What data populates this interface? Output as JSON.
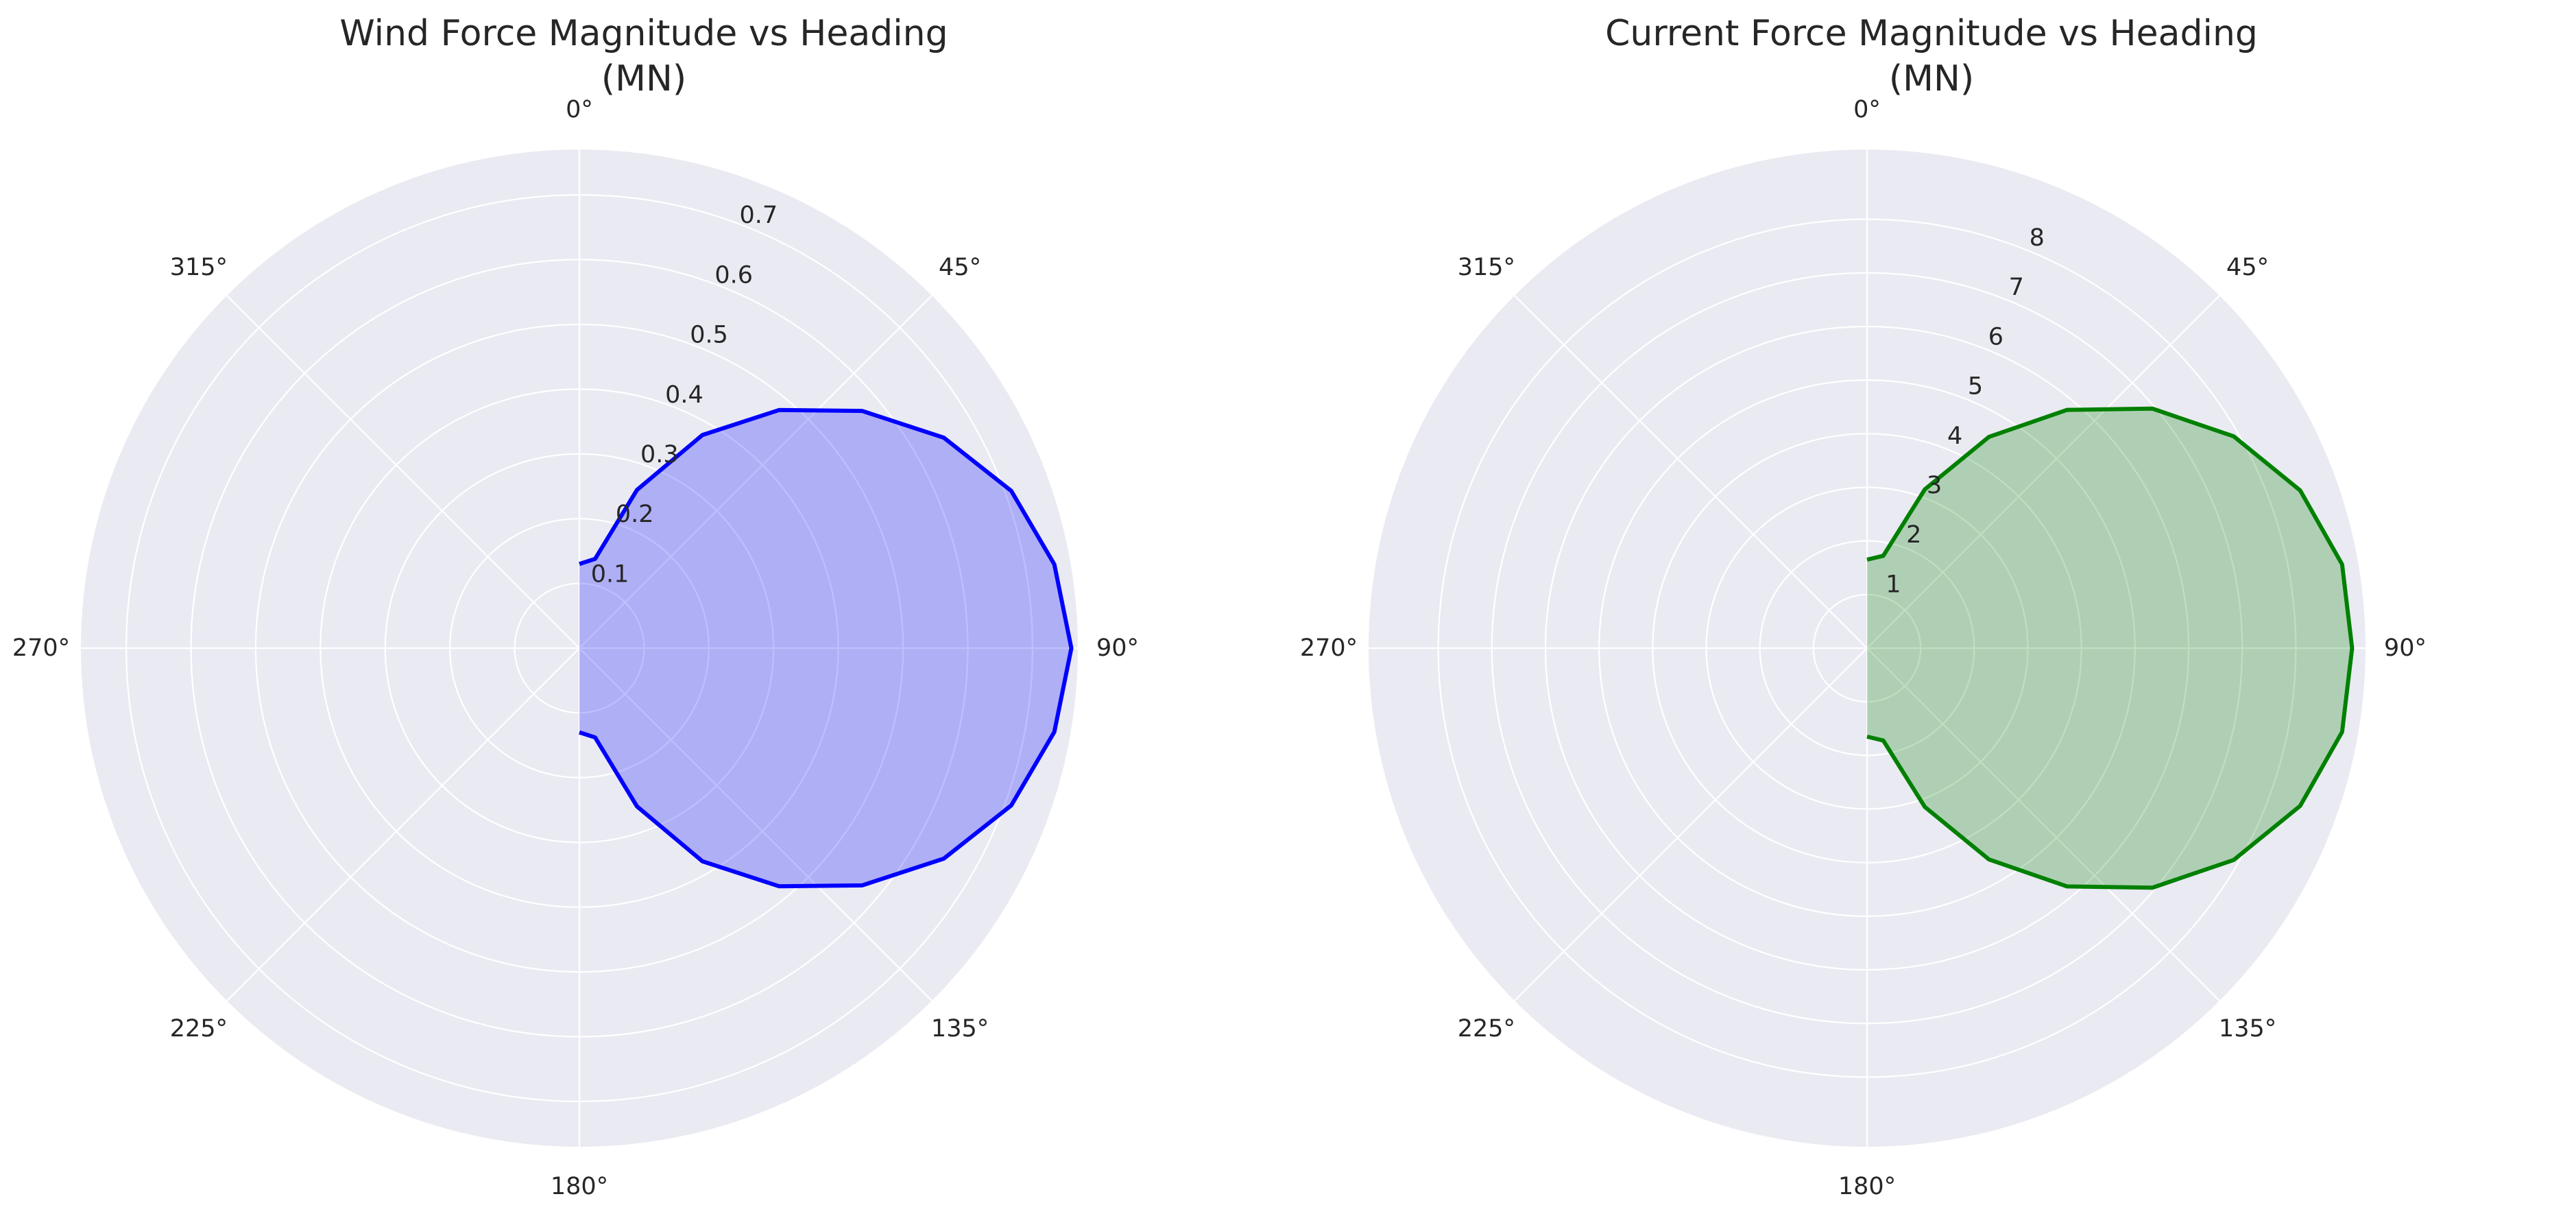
{
  "chart_data": [
    {
      "type": "line",
      "projection": "polar",
      "title": "Wind Force Magnitude vs Heading\n(MN)",
      "title_lines": [
        "Wind Force Magnitude vs Heading",
        "(MN)"
      ],
      "theta_direction": "clockwise",
      "theta_zero": "top",
      "theta_ticks": [
        "0°",
        "45°",
        "90°",
        "135°",
        "180°",
        "225°",
        "270°",
        "315°"
      ],
      "radial_ticks": [
        0.1,
        0.2,
        0.3,
        0.4,
        0.5,
        0.6,
        0.7
      ],
      "radial_tick_labels": [
        "0.1",
        "0.2",
        "0.3",
        "0.4",
        "0.5",
        "0.6",
        "0.7"
      ],
      "rlim": [
        0,
        0.77
      ],
      "grid": true,
      "line_color": "#0000ff",
      "fill_color": "#0000ff",
      "fill_alpha": 0.25,
      "x": [
        0,
        10,
        20,
        30,
        40,
        50,
        60,
        70,
        80,
        90,
        100,
        110,
        120,
        130,
        140,
        150,
        160,
        170,
        180
      ],
      "y": [
        0.13,
        0.14,
        0.26,
        0.38,
        0.48,
        0.57,
        0.65,
        0.71,
        0.745,
        0.76,
        0.745,
        0.71,
        0.65,
        0.57,
        0.48,
        0.38,
        0.26,
        0.14,
        0.13
      ]
    },
    {
      "type": "line",
      "projection": "polar",
      "title": "Current Force Magnitude vs Heading\n(MN)",
      "title_lines": [
        "Current Force Magnitude vs Heading",
        "(MN)"
      ],
      "theta_direction": "clockwise",
      "theta_zero": "top",
      "theta_ticks": [
        "0°",
        "45°",
        "90°",
        "135°",
        "180°",
        "225°",
        "270°",
        "315°"
      ],
      "radial_ticks": [
        1,
        2,
        3,
        4,
        5,
        6,
        7,
        8
      ],
      "radial_tick_labels": [
        "1",
        "2",
        "3",
        "4",
        "5",
        "6",
        "7",
        "8"
      ],
      "rlim": [
        0,
        9.3
      ],
      "grid": true,
      "line_color": "#008000",
      "fill_color": "#008000",
      "fill_alpha": 0.25,
      "x": [
        0,
        10,
        20,
        30,
        40,
        50,
        60,
        70,
        80,
        90,
        100,
        110,
        120,
        130,
        140,
        150,
        160,
        170,
        180
      ],
      "y": [
        1.65,
        1.75,
        3.15,
        4.55,
        5.8,
        6.95,
        7.9,
        8.6,
        9.0,
        9.05,
        9.0,
        8.6,
        7.9,
        6.95,
        5.8,
        4.55,
        3.15,
        1.75,
        1.65
      ]
    }
  ],
  "style": {
    "axes_background": "#eaeaf2",
    "grid_color": "#ffffff",
    "text_color": "#262626"
  }
}
